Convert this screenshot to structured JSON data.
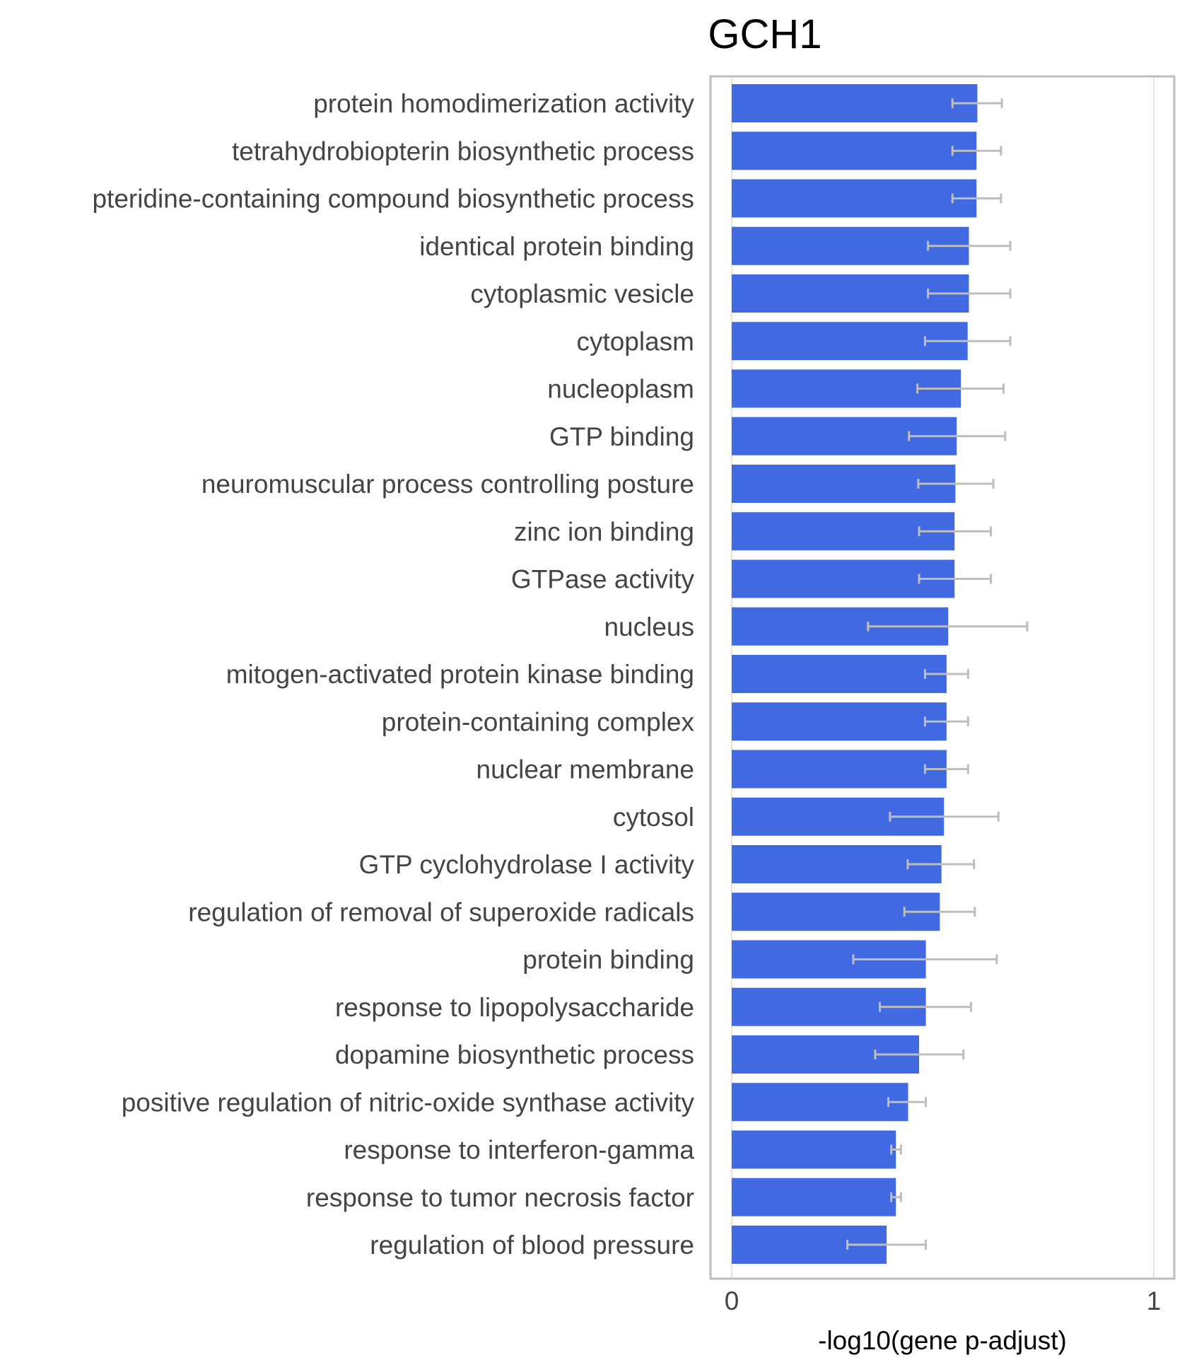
{
  "chart_data": {
    "type": "bar",
    "orientation": "horizontal",
    "title": "GCH1",
    "xlabel": "-log10(gene p-adjust)",
    "ylabel": "",
    "xlim": [
      0,
      1
    ],
    "xticks": [
      "0",
      "1"
    ],
    "grid": true,
    "legend": "none",
    "bar_color": "#4169e1",
    "error_color": "#bdbdbd",
    "categories": [
      "protein homodimerization activity",
      "tetrahydrobiopterin biosynthetic process",
      "pteridine-containing compound biosynthetic process",
      "identical protein binding",
      "cytoplasmic vesicle",
      "cytoplasm",
      "nucleoplasm",
      "GTP binding",
      "neuromuscular process controlling posture",
      "zinc ion binding",
      "GTPase activity",
      "nucleus",
      "mitogen-activated protein kinase binding",
      "protein-containing complex",
      "nuclear membrane",
      "cytosol",
      "GTP cyclohydrolase I activity",
      "regulation of removal of superoxide radicals",
      "protein binding",
      "response to lipopolysaccharide",
      "dopamine biosynthetic process",
      "positive regulation of nitric-oxide synthase activity",
      "response to interferon-gamma",
      "response to tumor necrosis factor",
      "regulation of blood pressure"
    ],
    "values": [
      0.582,
      0.58,
      0.58,
      0.562,
      0.562,
      0.559,
      0.543,
      0.533,
      0.53,
      0.528,
      0.528,
      0.513,
      0.509,
      0.509,
      0.509,
      0.503,
      0.497,
      0.493,
      0.46,
      0.46,
      0.444,
      0.418,
      0.389,
      0.389,
      0.367
    ],
    "error_low": [
      0.523,
      0.523,
      0.523,
      0.465,
      0.465,
      0.458,
      0.44,
      0.42,
      0.442,
      0.444,
      0.444,
      0.323,
      0.458,
      0.458,
      0.458,
      0.375,
      0.417,
      0.409,
      0.288,
      0.351,
      0.34,
      0.371,
      0.378,
      0.378,
      0.274
    ],
    "error_high": [
      0.64,
      0.638,
      0.638,
      0.66,
      0.66,
      0.66,
      0.644,
      0.648,
      0.62,
      0.614,
      0.614,
      0.7,
      0.56,
      0.56,
      0.56,
      0.632,
      0.574,
      0.576,
      0.628,
      0.567,
      0.549,
      0.46,
      0.401,
      0.401,
      0.46
    ]
  }
}
